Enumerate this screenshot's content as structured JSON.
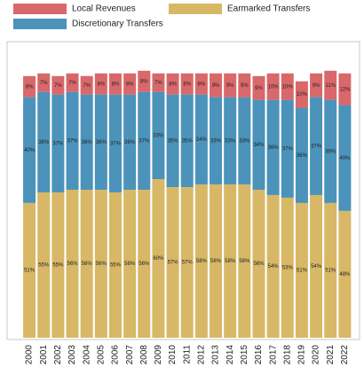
{
  "chart_data": {
    "type": "stacked_bar",
    "categories": [
      "2000",
      "2001",
      "2002",
      "2003",
      "2004",
      "2005",
      "2006",
      "2007",
      "2008",
      "2009",
      "2010",
      "2011",
      "2012",
      "2013",
      "2014",
      "2015",
      "2016",
      "2017",
      "2018",
      "2019",
      "2020",
      "2021",
      "2022"
    ],
    "series": [
      {
        "name": "Earmarked Transfers",
        "color": "#d8b866",
        "values": [
          51,
          55,
          55,
          56,
          56,
          56,
          55,
          56,
          56,
          60,
          57,
          57,
          58,
          58,
          58,
          58,
          56,
          54,
          53,
          51,
          54,
          51,
          48
        ],
        "value_labels": [
          "51%",
          "55%",
          "55%",
          "56%",
          "56%",
          "56%",
          "55%",
          "56%",
          "56%",
          "60%",
          "57%",
          "57%",
          "58%",
          "58%",
          "58%",
          "58%",
          "56%",
          "54%",
          "53%",
          "51%",
          "54%",
          "51%",
          "48%"
        ]
      },
      {
        "name": "Discretionary Transfers",
        "color": "#4b93ba",
        "values": [
          40,
          38,
          37,
          37,
          36,
          36,
          37,
          36,
          37,
          33,
          35,
          35,
          34,
          33,
          33,
          33,
          34,
          36,
          37,
          36,
          37,
          39,
          40
        ],
        "value_labels": [
          "40%",
          "38%",
          "37%",
          "37%",
          "36%",
          "36%",
          "37%",
          "36%",
          "37%",
          "33%",
          "35%",
          "35%",
          "34%",
          "33%",
          "33%",
          "33%",
          "34%",
          "36%",
          "37%",
          "36%",
          "37%",
          "39%",
          "40%"
        ]
      },
      {
        "name": "Local Revenues",
        "color": "#d9686b",
        "values": [
          8,
          7,
          7,
          7,
          7,
          8,
          8,
          8,
          8,
          7,
          8,
          8,
          8,
          9,
          9,
          9,
          9,
          10,
          10,
          10,
          9,
          11,
          12
        ],
        "value_labels": [
          "8%",
          "7%",
          "7%",
          "7%",
          "7%",
          "8%",
          "8%",
          "8%",
          "8%",
          "7%",
          "8%",
          "8%",
          "8%",
          "9%",
          "9%",
          "9%",
          "9%",
          "10%",
          "10%",
          "10%",
          "9%",
          "11%",
          "12%"
        ]
      }
    ],
    "ylim": [
      0,
      112
    ]
  }
}
